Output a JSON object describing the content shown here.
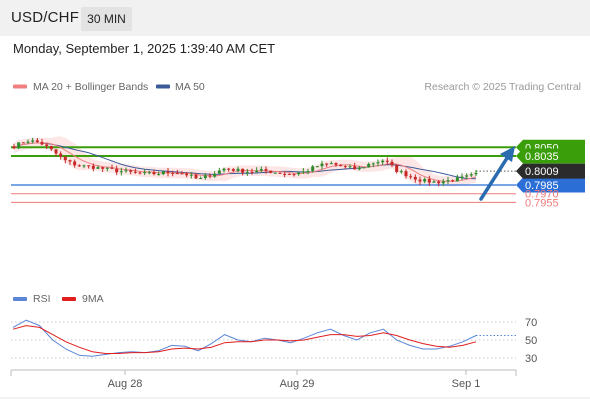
{
  "header": {
    "symbol": "USD/CHF",
    "timeframe": "30 MIN"
  },
  "datetime": "Monday, September 1, 2025 1:39:40 AM CET",
  "legend": {
    "bollinger_label": "MA 20 + Bollinger Bands",
    "ma50_label": "MA 50",
    "source": "Research © 2025 Trading Central"
  },
  "colors": {
    "ma20": "#f08080",
    "bands_fill": "#fde3e3",
    "ma50": "#3a5a98",
    "resistance": "#3a9e0a",
    "support": "#2b6fd6",
    "pivot_red": "#f07a7a",
    "current_price": "#2b2b2b",
    "candle_up": "#2e8b2e",
    "candle_down": "#c62828",
    "arrow": "#2b6cb0",
    "rsi": "#5b86d8",
    "rsi_ma": "#e01e1e"
  },
  "chart_data": [
    {
      "type": "candlestick",
      "title": "USD/CHF",
      "timeframe": "30 MIN",
      "x_ticks": [
        "Aug 28",
        "Aug 29",
        "Sep 1"
      ],
      "ylim": [
        0.795,
        0.8075
      ],
      "approx_close_path": [
        0.8052,
        0.8062,
        0.8058,
        0.8042,
        0.8025,
        0.8018,
        0.8016,
        0.8012,
        0.8009,
        0.8006,
        0.8004,
        0.8005,
        0.8008,
        0.8004,
        0.7994,
        0.8004,
        0.8014,
        0.801,
        0.8008,
        0.801,
        0.8006,
        0.8004,
        0.8008,
        0.8018,
        0.8022,
        0.8016,
        0.8012,
        0.8022,
        0.8028,
        0.801,
        0.8,
        0.7992,
        0.799,
        0.7993,
        0.7997,
        0.8003
      ],
      "current_price": "0.8009",
      "resistance_levels": [
        "0.8050",
        "0.8035"
      ],
      "support_levels": [
        "0.7985",
        "0.7970",
        "0.7955"
      ],
      "outlook": "bullish"
    },
    {
      "type": "line",
      "title": "RSI",
      "series": [
        {
          "name": "RSI",
          "values": [
            64,
            72,
            66,
            50,
            40,
            33,
            32,
            34,
            36,
            37,
            36,
            38,
            44,
            43,
            38,
            46,
            56,
            50,
            48,
            52,
            50,
            47,
            52,
            58,
            62,
            55,
            50,
            58,
            62,
            50,
            44,
            40,
            40,
            43,
            48,
            55
          ]
        },
        {
          "name": "9MA",
          "values": [
            62,
            66,
            64,
            56,
            48,
            42,
            37,
            35,
            35,
            36,
            36,
            37,
            40,
            41,
            40,
            42,
            47,
            48,
            48,
            50,
            50,
            49,
            50,
            53,
            56,
            56,
            54,
            55,
            58,
            55,
            50,
            46,
            43,
            42,
            44,
            48
          ]
        }
      ],
      "y_ticks": [
        70,
        50,
        30
      ],
      "ylim": [
        20,
        80
      ]
    }
  ]
}
